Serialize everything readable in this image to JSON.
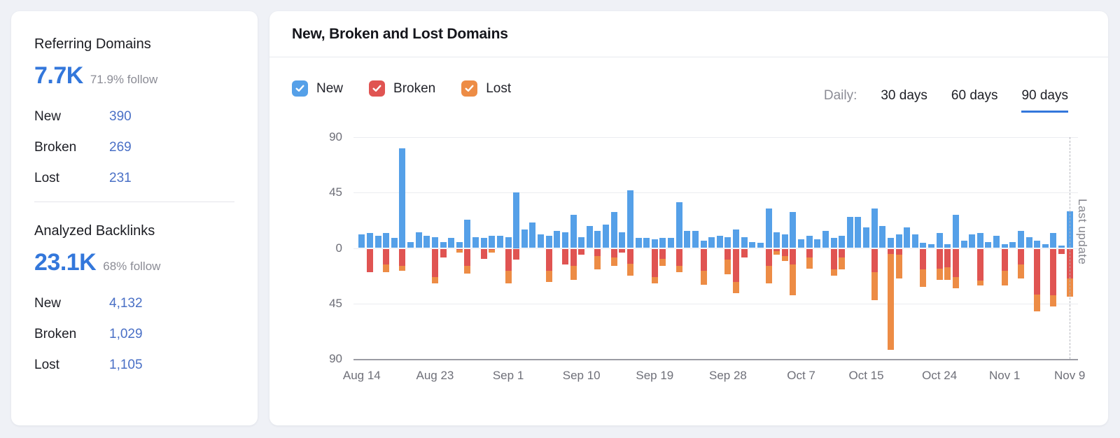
{
  "sidebar": {
    "sections": [
      {
        "title": "Referring Domains",
        "big_value": "7.7K",
        "follow_text": "71.9% follow",
        "rows": [
          {
            "label": "New",
            "value": "390"
          },
          {
            "label": "Broken",
            "value": "269"
          },
          {
            "label": "Lost",
            "value": "231"
          }
        ]
      },
      {
        "title": "Analyzed Backlinks",
        "big_value": "23.1K",
        "follow_text": "68% follow",
        "rows": [
          {
            "label": "New",
            "value": "4,132"
          },
          {
            "label": "Broken",
            "value": "1,029"
          },
          {
            "label": "Lost",
            "value": "1,105"
          }
        ]
      }
    ]
  },
  "chart_panel": {
    "title": "New, Broken and Lost Domains",
    "legend": [
      {
        "label": "New",
        "color": "#55a0e8",
        "checked": true
      },
      {
        "label": "Broken",
        "color": "#e4５8５6",
        "checked": true
      },
      {
        "label": "Lost",
        "color": "#ee8f4e",
        "checked": true
      }
    ],
    "period_selector": {
      "label": "Daily:",
      "options": [
        "30 days",
        "60 days",
        "90 days"
      ],
      "active": "90 days"
    },
    "last_update_label": "Last update"
  },
  "chart_data": {
    "type": "bar",
    "stacked": true,
    "title": "New, Broken and Lost Domains",
    "granularity": "daily",
    "num_points": 88,
    "x_start": "Aug 14",
    "x_end": "Nov 9",
    "x_tick_labels": [
      "Aug 14",
      "Aug 23",
      "Sep 1",
      "Sep 10",
      "Sep 19",
      "Sep 28",
      "Oct 7",
      "Oct 15",
      "Oct 24",
      "Nov 1",
      "Nov 9"
    ],
    "x_tick_indices": [
      0,
      9,
      18,
      27,
      36,
      45,
      54,
      62,
      71,
      79,
      87
    ],
    "y_tick_labels": [
      "90",
      "45",
      "0",
      "45",
      "90"
    ],
    "y_range": [
      -90,
      90
    ],
    "legend_position": "top-left",
    "grid": true,
    "series": [
      {
        "name": "New",
        "color": "#55a0e8",
        "direction": "up",
        "values": [
          11,
          12,
          10,
          12,
          8,
          81,
          5,
          13,
          10,
          9,
          5,
          8,
          5,
          23,
          9,
          8,
          10,
          10,
          9,
          45,
          15,
          21,
          11,
          10,
          14,
          13,
          27,
          9,
          18,
          14,
          19,
          29,
          13,
          47,
          8,
          8,
          7,
          8,
          8,
          37,
          14,
          14,
          6,
          9,
          10,
          9,
          15,
          9,
          5,
          4,
          32,
          13,
          11,
          29,
          7,
          10,
          7,
          14,
          8,
          10,
          25,
          25,
          17,
          32,
          18,
          8,
          11,
          17,
          11,
          4,
          3,
          12,
          3,
          27,
          6,
          11,
          12,
          5,
          10,
          3,
          5,
          14,
          9,
          6,
          3,
          12,
          2,
          30
        ]
      },
      {
        "name": "Broken",
        "color": "#e05452",
        "direction": "down",
        "values": [
          0,
          19,
          0,
          13,
          0,
          14,
          0,
          0,
          0,
          23,
          7,
          0,
          1,
          14,
          0,
          8,
          1,
          0,
          18,
          9,
          0,
          0,
          0,
          18,
          0,
          13,
          14,
          5,
          0,
          6,
          0,
          7,
          3,
          12,
          0,
          0,
          23,
          8,
          0,
          14,
          0,
          0,
          18,
          0,
          0,
          9,
          27,
          7,
          0,
          0,
          14,
          2,
          6,
          13,
          0,
          7,
          0,
          0,
          17,
          7,
          0,
          0,
          0,
          19,
          0,
          4,
          5,
          0,
          0,
          17,
          0,
          16,
          15,
          23,
          0,
          0,
          26,
          0,
          0,
          18,
          0,
          13,
          0,
          37,
          0,
          38,
          4,
          24
        ]
      },
      {
        "name": "Lost",
        "color": "#ed8c45",
        "direction": "down",
        "values": [
          0,
          0,
          0,
          6,
          0,
          4,
          0,
          0,
          0,
          5,
          0,
          0,
          2,
          6,
          0,
          0,
          2,
          0,
          10,
          0,
          0,
          0,
          0,
          9,
          0,
          0,
          11,
          0,
          0,
          11,
          0,
          7,
          0,
          10,
          0,
          0,
          5,
          6,
          0,
          5,
          0,
          0,
          11,
          0,
          0,
          12,
          9,
          0,
          0,
          0,
          14,
          3,
          4,
          25,
          0,
          9,
          0,
          0,
          5,
          10,
          0,
          0,
          0,
          23,
          0,
          78,
          19,
          0,
          0,
          14,
          0,
          9,
          10,
          9,
          0,
          0,
          4,
          0,
          0,
          12,
          0,
          11,
          0,
          14,
          0,
          9,
          0,
          15
        ]
      }
    ],
    "annotation": {
      "label": "Last update",
      "at_index": 87
    }
  }
}
